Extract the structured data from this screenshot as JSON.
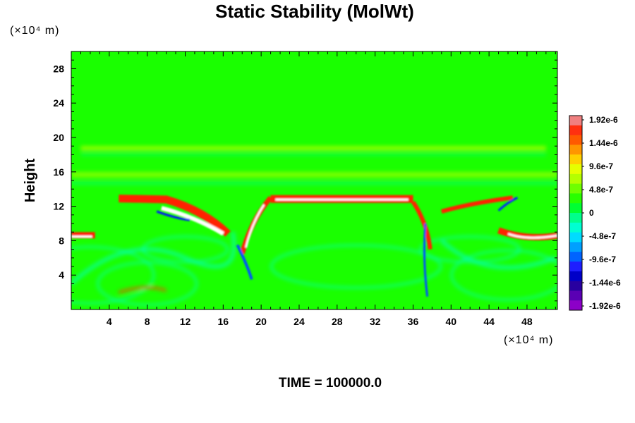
{
  "chart_data": {
    "type": "heatmap",
    "title": "Static Stability (MolWt)",
    "ylabel": "Height",
    "y_unit": "(×10⁴ m)",
    "x_unit": "(×10⁴ m)",
    "xlim": [
      0,
      51.2
    ],
    "ylim": [
      0,
      30
    ],
    "x_ticks": [
      4,
      8,
      12,
      16,
      20,
      24,
      28,
      32,
      36,
      40,
      44,
      48
    ],
    "y_ticks": [
      4,
      8,
      12,
      16,
      20,
      24,
      28
    ],
    "x_tick_labels": [
      "4",
      "8",
      "12",
      "16",
      "20",
      "24",
      "28",
      "32",
      "36",
      "40",
      "44",
      "48"
    ],
    "y_tick_labels": [
      "4",
      "8",
      "12",
      "16",
      "20",
      "24",
      "28"
    ],
    "colorbar": {
      "labels": [
        "1.92e-6",
        "1.44e-6",
        "9.6e-7",
        "4.8e-7",
        "0",
        "-4.8e-7",
        "-9.6e-7",
        "-1.44e-6",
        "-1.92e-6"
      ],
      "values": [
        1.92e-06,
        1.44e-06,
        9.6e-07,
        4.8e-07,
        0,
        -4.8e-07,
        -9.6e-07,
        -1.44e-06,
        -1.92e-06
      ],
      "colors": [
        "#f08080",
        "#ff3010",
        "#ff5a00",
        "#ff9600",
        "#ffd000",
        "#e6ff00",
        "#b4ff00",
        "#6eff00",
        "#28ff00",
        "#00ff32",
        "#00ff8c",
        "#00ffd2",
        "#00dcff",
        "#00a0ff",
        "#0064ff",
        "#1e1eff",
        "#0000c8",
        "#2800a0",
        "#5a00b4",
        "#8c00c8"
      ]
    },
    "background_value": 0,
    "features": [
      {
        "kind": "band",
        "name": "upper-inversion-left",
        "x_range": [
          5,
          16.5
        ],
        "y": 13,
        "sign": "positive"
      },
      {
        "kind": "band",
        "name": "upper-inversion-center",
        "x_range": [
          21,
          36
        ],
        "y": 12.8,
        "sign": "positive"
      },
      {
        "kind": "band",
        "name": "low-inversion-left",
        "x_range": [
          0,
          3
        ],
        "y": 8.5,
        "sign": "positive"
      },
      {
        "kind": "band",
        "name": "low-inversion-right",
        "x_range": [
          45,
          51.2
        ],
        "y": 8.5,
        "sign": "positive"
      },
      {
        "kind": "band",
        "name": "tropopause-weak",
        "x_range": [
          0,
          51.2
        ],
        "y": 18.5,
        "sign": "weak-positive"
      },
      {
        "kind": "band",
        "name": "mid-weak",
        "x_range": [
          0,
          51.2
        ],
        "y": 15.5,
        "sign": "weak-positive"
      }
    ]
  },
  "footer": {
    "time_label": "TIME = 100000.0"
  }
}
